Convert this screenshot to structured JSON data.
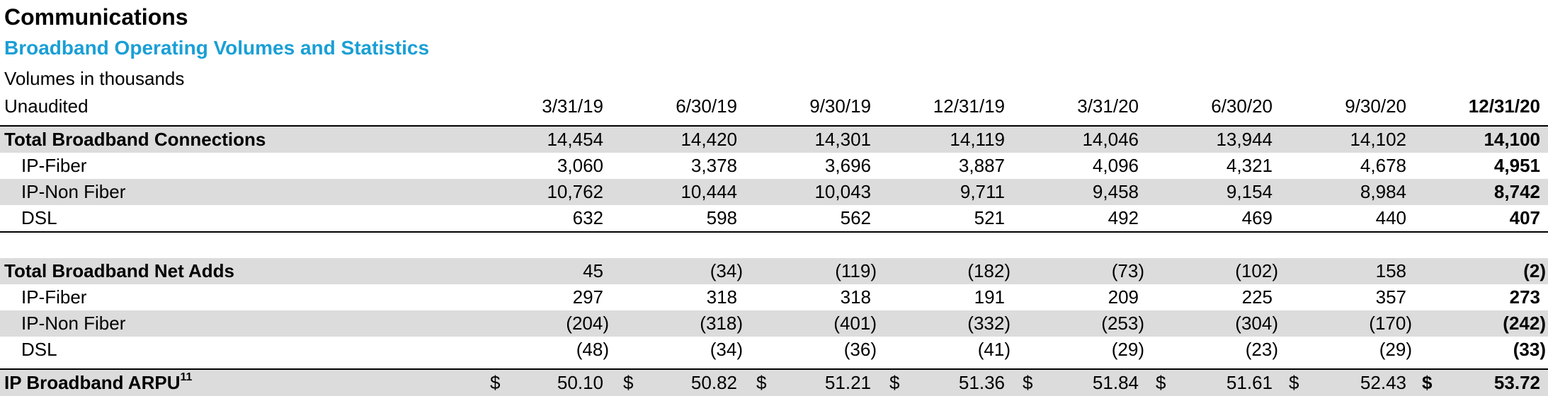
{
  "title": "Communications",
  "subtitle": "Broadband Operating Volumes and Statistics",
  "note": "Volumes in thousands",
  "header_label": "Unaudited",
  "periods": [
    "3/31/19",
    "6/30/19",
    "9/30/19",
    "12/31/19",
    "3/31/20",
    "6/30/20",
    "9/30/20",
    "12/31/20"
  ],
  "connections": {
    "total": {
      "label": "Total Broadband Connections",
      "values": [
        "14,454",
        "14,420",
        "14,301",
        "14,119",
        "14,046",
        "13,944",
        "14,102",
        "14,100"
      ]
    },
    "ip_fiber": {
      "label": "IP-Fiber",
      "values": [
        "3,060",
        "3,378",
        "3,696",
        "3,887",
        "4,096",
        "4,321",
        "4,678",
        "4,951"
      ]
    },
    "ip_non_fiber": {
      "label": "IP-Non Fiber",
      "values": [
        "10,762",
        "10,444",
        "10,043",
        "9,711",
        "9,458",
        "9,154",
        "8,984",
        "8,742"
      ]
    },
    "dsl": {
      "label": "DSL",
      "values": [
        "632",
        "598",
        "562",
        "521",
        "492",
        "469",
        "440",
        "407"
      ]
    }
  },
  "net_adds": {
    "total": {
      "label": "Total Broadband Net Adds",
      "values": [
        "45",
        "(34)",
        "(119)",
        "(182)",
        "(73)",
        "(102)",
        "158",
        "(2)"
      ]
    },
    "ip_fiber": {
      "label": "IP-Fiber",
      "values": [
        "297",
        "318",
        "318",
        "191",
        "209",
        "225",
        "357",
        "273"
      ]
    },
    "ip_non_fiber": {
      "label": "IP-Non Fiber",
      "values": [
        "(204)",
        "(318)",
        "(401)",
        "(332)",
        "(253)",
        "(304)",
        "(170)",
        "(242)"
      ]
    },
    "dsl": {
      "label": "DSL",
      "values": [
        "(48)",
        "(34)",
        "(36)",
        "(41)",
        "(29)",
        "(23)",
        "(29)",
        "(33)"
      ]
    }
  },
  "arpu": {
    "label": "IP Broadband ARPU",
    "footnote": "11",
    "currency": "$",
    "values": [
      "50.10",
      "50.82",
      "51.21",
      "51.36",
      "51.84",
      "51.61",
      "52.43",
      "53.72"
    ]
  }
}
